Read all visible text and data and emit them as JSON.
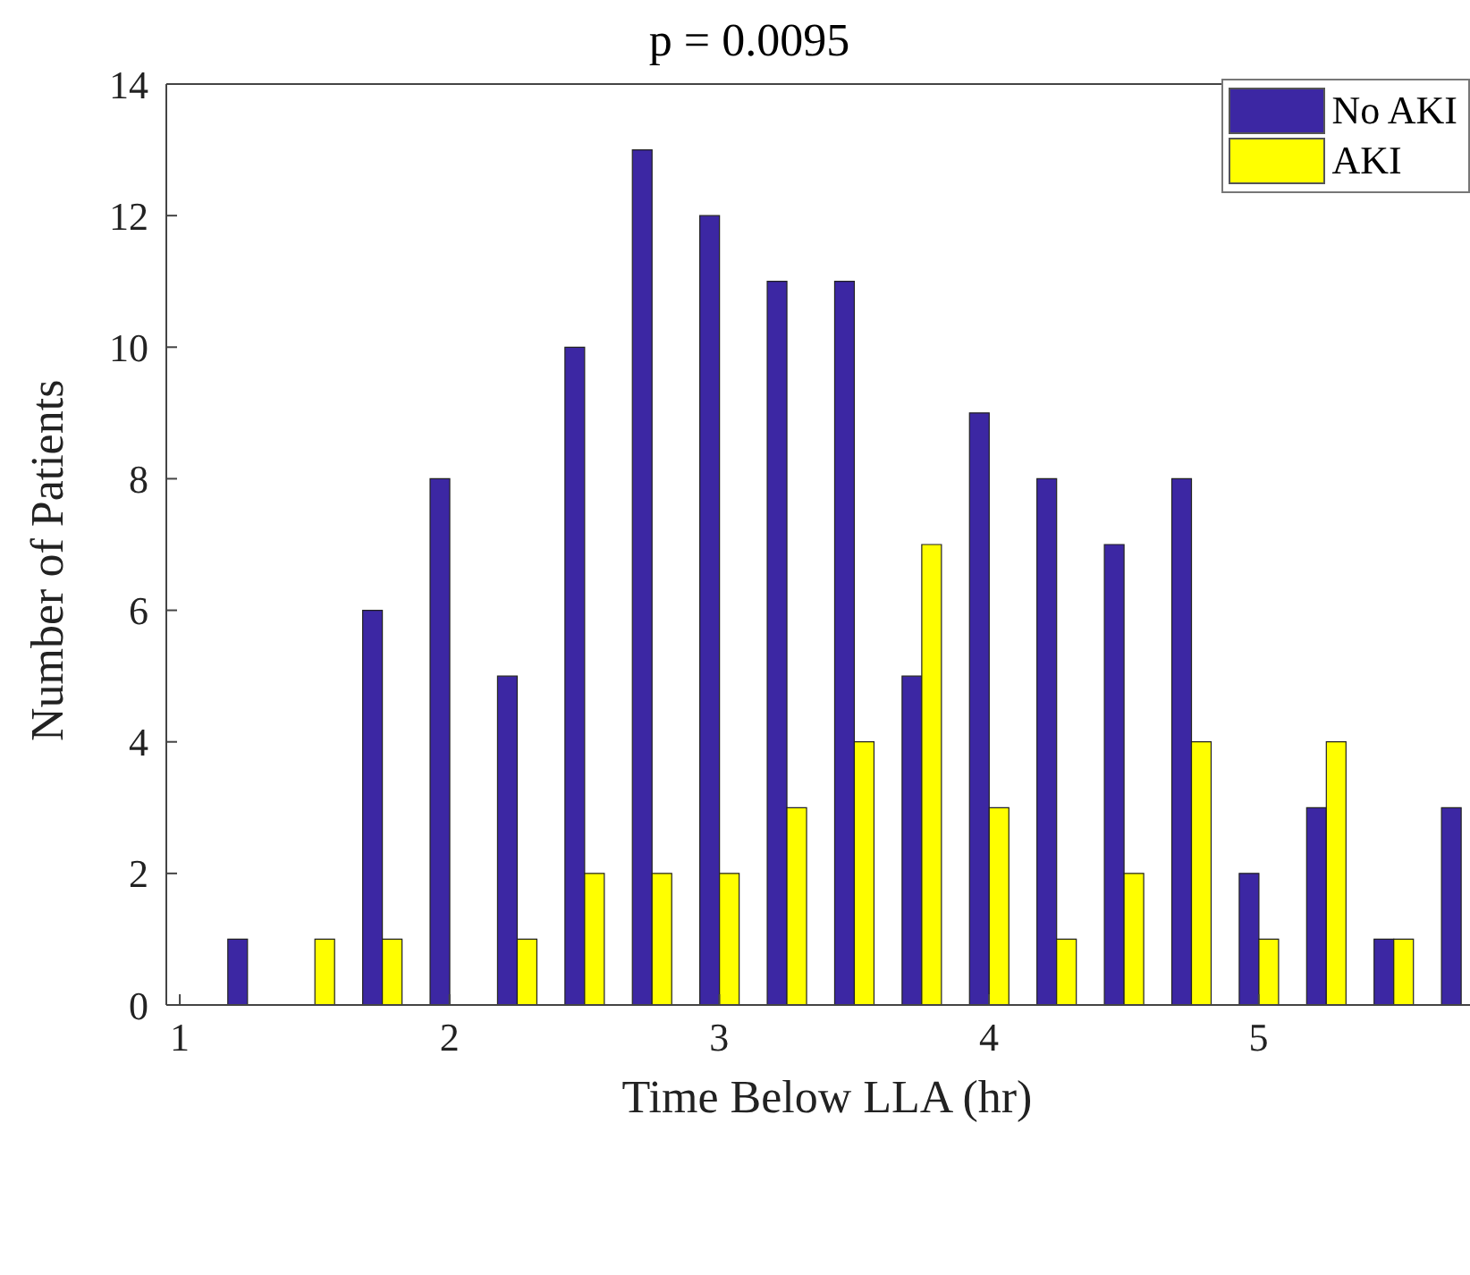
{
  "chart_data": {
    "type": "bar",
    "title": "p = 0.0095",
    "xlabel": "Time Below LLA (hr)",
    "ylabel": "Number of Patients",
    "x": [
      1.25,
      1.5,
      1.75,
      2.0,
      2.25,
      2.5,
      2.75,
      3.0,
      3.25,
      3.5,
      3.75,
      4.0,
      4.25,
      4.5,
      4.75,
      5.0,
      5.25,
      5.5,
      5.75
    ],
    "series": [
      {
        "name": "No AKI",
        "color": "#3c27a3",
        "values": [
          1,
          0,
          6,
          8,
          5,
          10,
          13,
          12,
          11,
          11,
          5,
          9,
          8,
          7,
          8,
          2,
          3,
          1,
          3
        ]
      },
      {
        "name": "AKI",
        "color": "#ffff00",
        "values": [
          0,
          1,
          1,
          0,
          1,
          2,
          2,
          2,
          3,
          4,
          7,
          3,
          1,
          2,
          4,
          1,
          4,
          1,
          0
        ]
      }
    ],
    "xlim": [
      0.95,
      5.85
    ],
    "xticks": [
      1,
      2,
      3,
      4,
      5
    ],
    "ylim": [
      0,
      14
    ],
    "yticks": [
      0,
      2,
      4,
      6,
      8,
      10,
      12,
      14
    ],
    "grid": false,
    "legend": "top right"
  }
}
